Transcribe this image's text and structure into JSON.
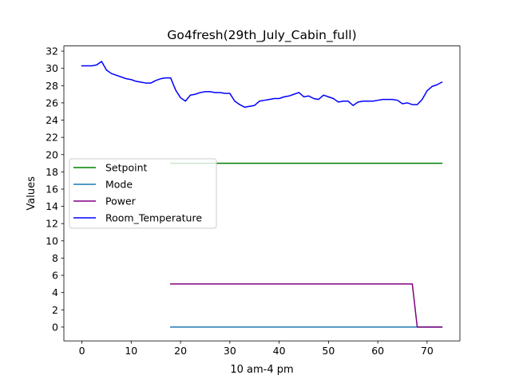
{
  "chart_data": {
    "type": "line",
    "title": "Go4fresh(29th_July_Cabin_full)",
    "xlabel": "10 am-4 pm",
    "ylabel": "Values",
    "xlim": [
      -3.65,
      76.65
    ],
    "ylim": [
      -1.6,
      32.6
    ],
    "xticks": [
      0,
      10,
      20,
      30,
      40,
      50,
      60,
      70
    ],
    "yticks": [
      0,
      2,
      4,
      6,
      8,
      10,
      12,
      14,
      16,
      18,
      20,
      22,
      24,
      26,
      28,
      30,
      32
    ],
    "grid": false,
    "legend_position": "center-left",
    "series": [
      {
        "name": "Setpoint",
        "color": "#008000",
        "x": [
          18,
          73
        ],
        "y": [
          19,
          19
        ]
      },
      {
        "name": "Mode",
        "color": "#1f77b4",
        "x": [
          18,
          73
        ],
        "y": [
          0,
          0
        ]
      },
      {
        "name": "Power",
        "color": "#800080",
        "x": [
          18,
          19,
          30,
          40,
          50,
          60,
          67,
          68,
          69,
          73
        ],
        "y": [
          5,
          5,
          5,
          5,
          5,
          5,
          5,
          0,
          0,
          0
        ]
      },
      {
        "name": "Room_Temperature",
        "color": "#0000ff",
        "x": [
          0,
          1,
          2,
          3,
          4,
          5,
          6,
          7,
          8,
          9,
          10,
          11,
          12,
          13,
          14,
          15,
          16,
          17,
          18,
          19,
          20,
          21,
          22,
          23,
          24,
          25,
          26,
          27,
          28,
          29,
          30,
          31,
          32,
          33,
          34,
          35,
          36,
          37,
          38,
          39,
          40,
          41,
          42,
          43,
          44,
          45,
          46,
          47,
          48,
          49,
          50,
          51,
          52,
          53,
          54,
          55,
          56,
          57,
          58,
          59,
          60,
          61,
          62,
          63,
          64,
          65,
          66,
          67,
          68,
          69,
          70,
          71,
          72,
          73
        ],
        "y": [
          30.3,
          30.3,
          30.3,
          30.4,
          30.8,
          29.8,
          29.4,
          29.2,
          29.0,
          28.8,
          28.7,
          28.5,
          28.4,
          28.3,
          28.3,
          28.6,
          28.8,
          28.9,
          28.9,
          27.5,
          26.6,
          26.2,
          26.9,
          27.0,
          27.2,
          27.3,
          27.3,
          27.2,
          27.2,
          27.1,
          27.1,
          26.2,
          25.8,
          25.5,
          25.6,
          25.7,
          26.2,
          26.3,
          26.4,
          26.5,
          26.5,
          26.7,
          26.8,
          27.0,
          27.2,
          26.7,
          26.8,
          26.5,
          26.4,
          26.9,
          26.7,
          26.5,
          26.1,
          26.2,
          26.2,
          25.7,
          26.1,
          26.2,
          26.2,
          26.2,
          26.3,
          26.4,
          26.4,
          26.4,
          26.3,
          25.9,
          26.0,
          25.8,
          25.8,
          26.4,
          27.4,
          27.9,
          28.1,
          28.4
        ]
      }
    ]
  }
}
